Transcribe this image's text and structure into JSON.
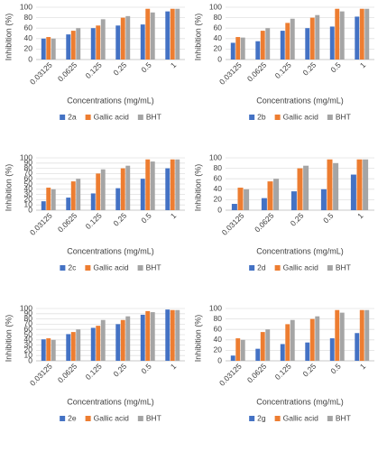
{
  "chart_data": [
    {
      "type": "bar",
      "categories": [
        "0.03125",
        "0.0625",
        "0.125",
        "0.25",
        "0.5",
        "1"
      ],
      "series": [
        {
          "name": "2a",
          "color": "#4472c4",
          "values": [
            40,
            48,
            60,
            65,
            67,
            92
          ]
        },
        {
          "name": "Gallic acid",
          "color": "#ed7d31",
          "values": [
            43,
            55,
            65,
            80,
            97,
            97
          ]
        },
        {
          "name": "BHT",
          "color": "#a5a5a5",
          "values": [
            40,
            60,
            77,
            83,
            90,
            97
          ]
        }
      ],
      "ylim": [
        0,
        100
      ],
      "yticks": [
        0,
        20,
        40,
        60,
        80,
        100
      ],
      "grid": true,
      "x_label": "Concentrations (mg/mL)",
      "y_label": "Inhibition (%)"
    },
    {
      "type": "bar",
      "categories": [
        "0.03125",
        "0.0625",
        "0.125",
        "0.25",
        "0.5",
        "1"
      ],
      "series": [
        {
          "name": "2b",
          "color": "#4472c4",
          "values": [
            32,
            35,
            55,
            60,
            63,
            82
          ]
        },
        {
          "name": "Gallic acid",
          "color": "#ed7d31",
          "values": [
            43,
            55,
            70,
            80,
            97,
            97
          ]
        },
        {
          "name": "BHT",
          "color": "#a5a5a5",
          "values": [
            42,
            60,
            78,
            85,
            92,
            97
          ]
        }
      ],
      "ylim": [
        0,
        100
      ],
      "yticks": [
        0,
        20,
        40,
        60,
        80,
        100
      ],
      "grid": true,
      "x_label": "Concentrations (mg/mL)",
      "y_label": "Inhibition (%)"
    },
    {
      "type": "bar",
      "categories": [
        "0.03125",
        "0.0625",
        "0.125",
        "0.25",
        "0.5",
        "1"
      ],
      "series": [
        {
          "name": "2c",
          "color": "#4472c4",
          "values": [
            17,
            24,
            32,
            42,
            60,
            80
          ]
        },
        {
          "name": "Gallic acid",
          "color": "#ed7d31",
          "values": [
            43,
            55,
            70,
            80,
            97,
            97
          ]
        },
        {
          "name": "BHT",
          "color": "#a5a5a5",
          "values": [
            40,
            60,
            78,
            85,
            93,
            97
          ]
        }
      ],
      "ylim": [
        0,
        100
      ],
      "yticks": [
        0,
        10,
        20,
        30,
        40,
        50,
        60,
        70,
        80,
        90,
        100
      ],
      "grid": true,
      "x_label": "Concentrations (mg/mL)",
      "y_label": "Inhibition (%)"
    },
    {
      "type": "bar",
      "categories": [
        "0.03125",
        "0.0625",
        "0.25",
        "0.5",
        "1"
      ],
      "series": [
        {
          "name": "2d",
          "color": "#4472c4",
          "values": [
            12,
            23,
            36,
            40,
            68
          ]
        },
        {
          "name": "Gallic acid",
          "color": "#ed7d31",
          "values": [
            43,
            55,
            80,
            97,
            97
          ]
        },
        {
          "name": "BHT",
          "color": "#a5a5a5",
          "values": [
            40,
            60,
            85,
            90,
            97
          ]
        }
      ],
      "ylim": [
        0,
        100
      ],
      "yticks": [
        0,
        20,
        40,
        60,
        80,
        100
      ],
      "grid": true,
      "x_label": "Concentrations (mg/mL)",
      "y_label": "Inhibition (%)"
    },
    {
      "type": "bar",
      "categories": [
        "0.03125",
        "0.0625",
        "0.125",
        "0.25",
        "0.5",
        "1"
      ],
      "series": [
        {
          "name": "2e",
          "color": "#4472c4",
          "values": [
            41,
            51,
            63,
            70,
            88,
            98
          ]
        },
        {
          "name": "Gallic acid",
          "color": "#ed7d31",
          "values": [
            43,
            55,
            67,
            78,
            95,
            97
          ]
        },
        {
          "name": "BHT",
          "color": "#a5a5a5",
          "values": [
            40,
            60,
            78,
            85,
            93,
            97
          ]
        }
      ],
      "ylim": [
        0,
        100
      ],
      "yticks": [
        0,
        10,
        20,
        30,
        40,
        50,
        60,
        70,
        80,
        90,
        100
      ],
      "grid": true,
      "x_label": "Concentrations (mg/mL)",
      "y_label": "Inhibition (%)"
    },
    {
      "type": "bar",
      "categories": [
        "0.03125",
        "0.0625",
        "0.125",
        "0.25",
        "0.5",
        "1"
      ],
      "series": [
        {
          "name": "2g",
          "color": "#4472c4",
          "values": [
            10,
            23,
            32,
            35,
            43,
            53
          ]
        },
        {
          "name": "Gallic acid",
          "color": "#ed7d31",
          "values": [
            43,
            55,
            70,
            80,
            97,
            97
          ]
        },
        {
          "name": "BHT",
          "color": "#a5a5a5",
          "values": [
            40,
            60,
            78,
            85,
            92,
            97
          ]
        }
      ],
      "ylim": [
        0,
        100
      ],
      "yticks": [
        0,
        20,
        40,
        60,
        80,
        100
      ],
      "grid": true,
      "x_label": "Concentrations (mg/mL)",
      "y_label": "Inhibition (%)"
    }
  ]
}
